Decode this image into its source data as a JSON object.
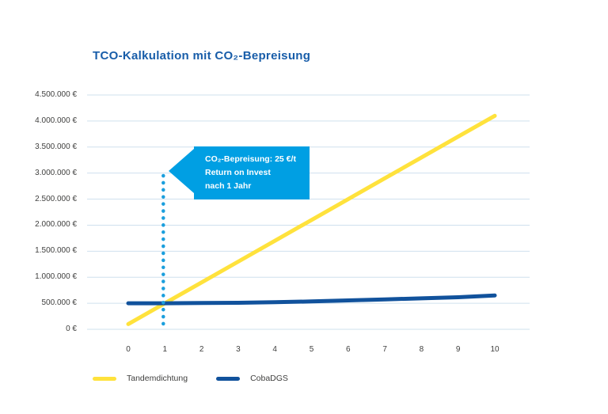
{
  "title": "TCO-Kalkulation mit CO₂-Bepreisung",
  "callout": {
    "line1": "CO₂-Bepreisung: 25 €/t",
    "line2": "Return on Invest",
    "line3": "nach 1 Jahr"
  },
  "legend": {
    "items": [
      {
        "label": "Tandemdichtung",
        "color": "#ffe23c"
      },
      {
        "label": "CobaDGS",
        "color": "#11529c"
      }
    ]
  },
  "colors": {
    "title": "#185da9",
    "axis_text": "#3f3f3e",
    "gridline": "#cfe0ee",
    "callout_bg": "#009fe3",
    "dotted_line": "#1b9fdd",
    "background": "#ffffff"
  },
  "chart_data": {
    "type": "line",
    "title": "TCO-Kalkulation mit CO₂-Bepreisung",
    "xlabel": "",
    "ylabel": "",
    "x": [
      0,
      1,
      2,
      3,
      4,
      5,
      6,
      7,
      8,
      9,
      10
    ],
    "series": [
      {
        "name": "Tandemdichtung",
        "color": "#ffe23c",
        "values": [
          100000,
          500000,
          900000,
          1300000,
          1700000,
          2100000,
          2500000,
          2900000,
          3300000,
          3700000,
          4100000
        ]
      },
      {
        "name": "CobaDGS",
        "color": "#11529c",
        "values": [
          500000,
          500000,
          505000,
          510000,
          520000,
          535000,
          555000,
          575000,
          595000,
          615000,
          650000
        ]
      }
    ],
    "ylim": [
      0,
      4500000
    ],
    "ytick_labels": [
      "0 €",
      "500.000 €",
      "1.000.000 €",
      "1.500.000 €",
      "2.000.000 €",
      "2.500.000 €",
      "3.000.000 €",
      "3.500.000 €",
      "4.000.000 €",
      "4.500.000 €"
    ],
    "xtick_labels": [
      "0",
      "1",
      "2",
      "3",
      "4",
      "5",
      "6",
      "7",
      "8",
      "9",
      "10"
    ],
    "grid": "horizontal",
    "legend_position": "bottom-left",
    "annotation": {
      "text": "CO₂-Bepreisung: 25 €/t Return on Invest nach 1 Jahr",
      "at_x": 1,
      "marker": "vertical-dotted-line"
    }
  }
}
